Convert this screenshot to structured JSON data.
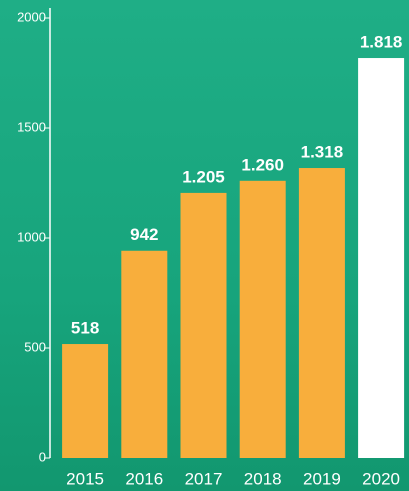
{
  "chart_data": {
    "type": "bar",
    "categories": [
      "2015",
      "2016",
      "2017",
      "2018",
      "2019",
      "2020"
    ],
    "values": [
      518,
      942,
      1205,
      1260,
      1318,
      1818
    ],
    "value_labels": [
      "518",
      "942",
      "1.205",
      "1.260",
      "1.318",
      "1.818"
    ],
    "colors": [
      "#f8ae3c",
      "#f8ae3c",
      "#f8ae3c",
      "#f8ae3c",
      "#f8ae3c",
      "#ffffff"
    ],
    "ylim": [
      0,
      2000
    ],
    "yticks": [
      0,
      500,
      1000,
      1500,
      2000
    ],
    "grid": false
  }
}
